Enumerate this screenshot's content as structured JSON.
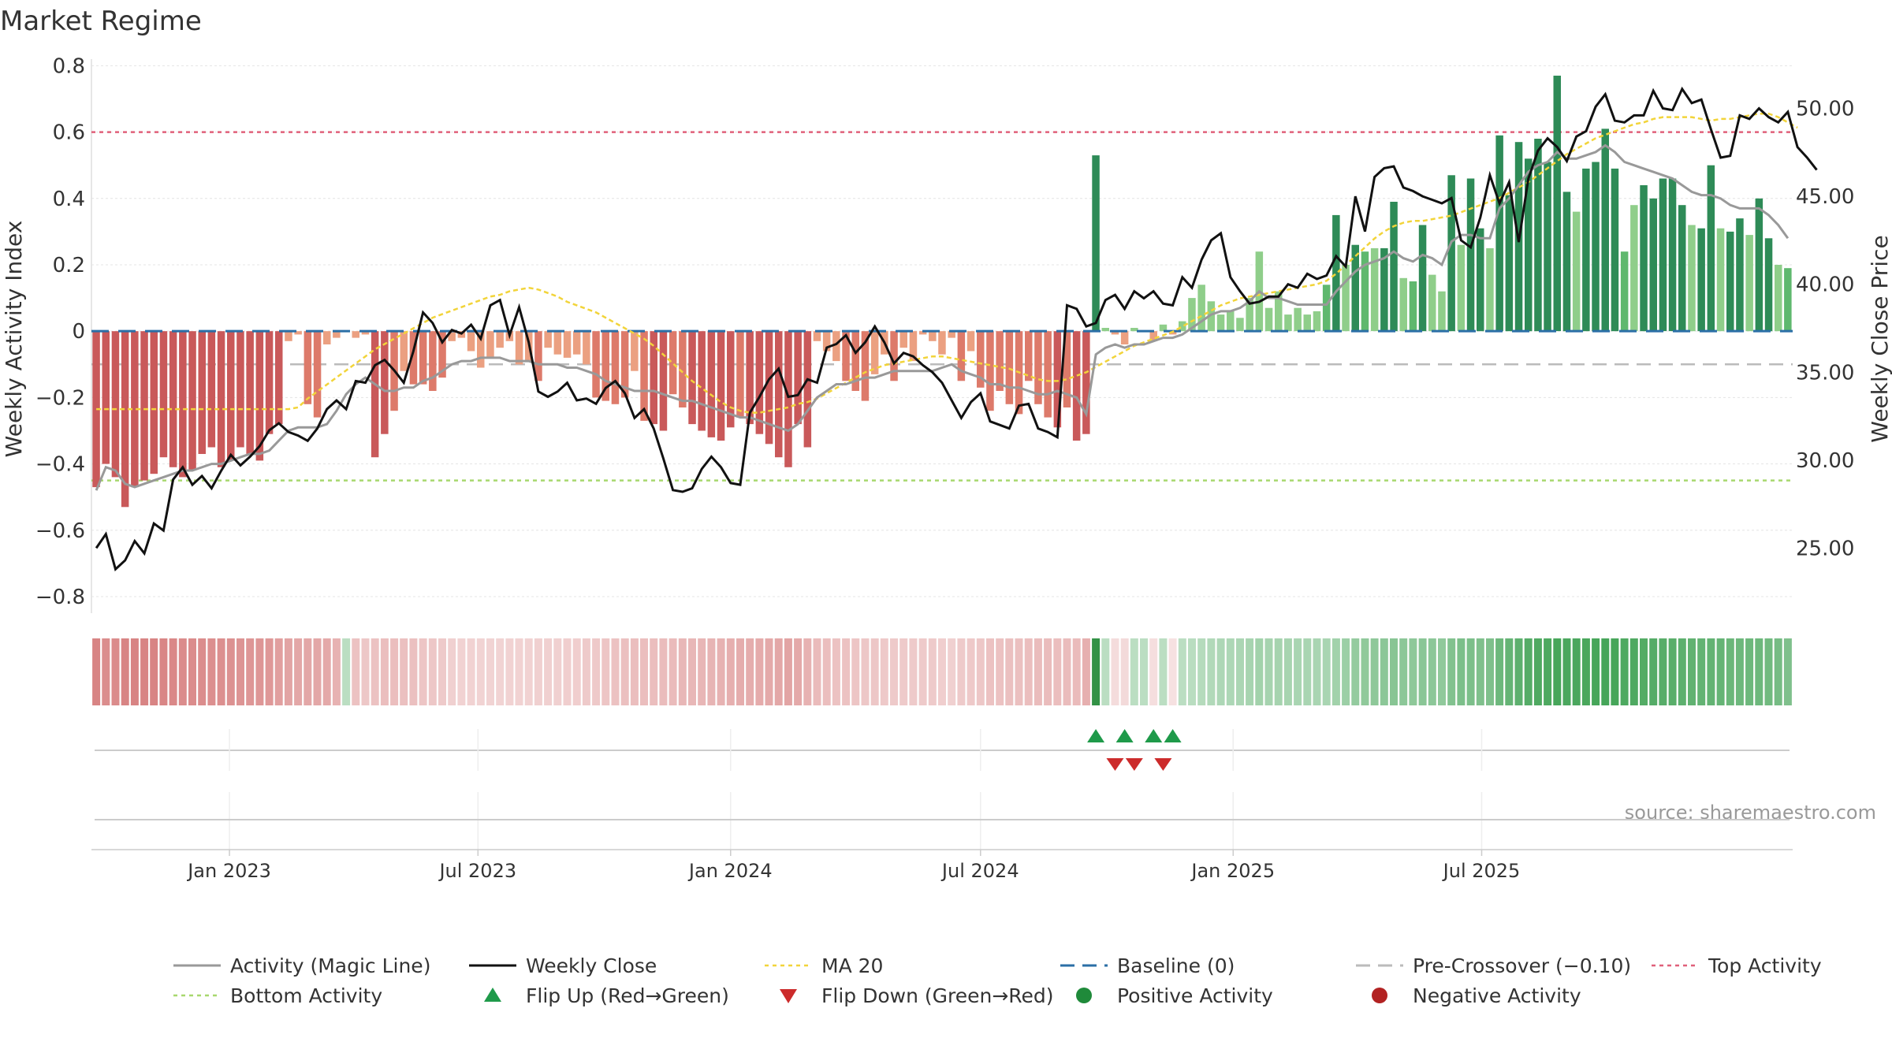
{
  "title": "Market Regime",
  "source": "source: sharemaestro.com",
  "colors": {
    "magic": "#999999",
    "close": "#111111",
    "ma20": "#f2d43a",
    "baseline": "#2b6fa6",
    "precross": "#bbbbbb",
    "top": "#e0607a",
    "bottom": "#a8d86e",
    "flip_up": "#1f9a4a",
    "flip_down": "#cc2b2b",
    "pos": "#1f8a3a",
    "neg": "#b22222",
    "grid": "#e4e4e4"
  },
  "chart_data": {
    "type": "bar",
    "left_axis": {
      "label": "Weekly Activity Index",
      "ylim": [
        -0.85,
        0.82
      ],
      "ticks": [
        "0.8",
        "0.6",
        "0.4",
        "0.2",
        "0",
        "−0.2",
        "−0.4",
        "−0.6",
        "−0.8"
      ]
    },
    "right_axis": {
      "label": "Weekly Close Price",
      "ylim": [
        21.3,
        52.8
      ],
      "ticks": [
        "50.00",
        "45.00",
        "40.00",
        "35.00",
        "30.00",
        "25.00"
      ]
    },
    "x_start": "2022-09-26",
    "x_step_days": 7,
    "x_ticks": [
      "Jan 2023",
      "Jul 2023",
      "Jan 2024",
      "Jul 2024",
      "Jan 2025",
      "Jul 2025"
    ],
    "top_activity": 0.6,
    "bottom_activity": -0.45,
    "pre_crossover": -0.1,
    "baseline": 0,
    "activity": [
      -0.47,
      -0.4,
      -0.44,
      -0.53,
      -0.47,
      -0.45,
      -0.43,
      -0.38,
      -0.41,
      -0.44,
      -0.42,
      -0.37,
      -0.35,
      -0.41,
      -0.39,
      -0.35,
      -0.37,
      -0.39,
      -0.31,
      -0.28,
      -0.03,
      -0.01,
      -0.22,
      -0.26,
      -0.04,
      -0.02,
      0,
      -0.02,
      -0.01,
      -0.38,
      -0.31,
      -0.24,
      -0.12,
      -0.16,
      -0.16,
      -0.18,
      -0.14,
      -0.03,
      -0.02,
      -0.06,
      -0.11,
      -0.08,
      -0.05,
      -0.03,
      -0.1,
      -0.09,
      -0.15,
      -0.05,
      -0.07,
      -0.08,
      -0.07,
      -0.1,
      -0.2,
      -0.21,
      -0.22,
      -0.2,
      -0.12,
      -0.27,
      -0.28,
      -0.3,
      -0.19,
      -0.23,
      -0.28,
      -0.3,
      -0.32,
      -0.33,
      -0.29,
      -0.26,
      -0.28,
      -0.31,
      -0.34,
      -0.38,
      -0.41,
      -0.28,
      -0.35,
      -0.03,
      -0.06,
      -0.09,
      -0.15,
      -0.18,
      -0.21,
      -0.13,
      -0.07,
      -0.15,
      -0.05,
      -0.09,
      -0.01,
      -0.03,
      -0.07,
      -0.02,
      -0.15,
      -0.06,
      -0.17,
      -0.24,
      -0.18,
      -0.22,
      -0.25,
      -0.15,
      -0.22,
      -0.26,
      -0.29,
      -0.23,
      -0.33,
      -0.31,
      0.53,
      0.01,
      -0.01,
      -0.04,
      0.01,
      0,
      -0.03,
      0.02,
      -0.01,
      0.03,
      0.1,
      0.14,
      0.09,
      0.05,
      0.06,
      0.04,
      0.1,
      0.24,
      0.07,
      0.12,
      0.05,
      0.07,
      0.05,
      0.06,
      0.14,
      0.35,
      0.2,
      0.26,
      0.24,
      0.25,
      0.25,
      0.39,
      0.16,
      0.15,
      0.32,
      0.17,
      0.12,
      0.47,
      0.26,
      0.46,
      0.31,
      0.25,
      0.59,
      0.41,
      0.57,
      0.52,
      0.58,
      0.51,
      0.77,
      0.42,
      0.36,
      0.49,
      0.51,
      0.61,
      0.49,
      0.24,
      0.38,
      0.44,
      0.4,
      0.46,
      0.46,
      0.38,
      0.32,
      0.31,
      0.5,
      0.31,
      0.3,
      0.34,
      0.29,
      0.4,
      0.28,
      0.2,
      0.19
    ],
    "magic": [
      -0.48,
      -0.41,
      -0.42,
      -0.46,
      -0.47,
      -0.46,
      -0.45,
      -0.44,
      -0.43,
      -0.42,
      -0.42,
      -0.41,
      -0.4,
      -0.4,
      -0.39,
      -0.38,
      -0.37,
      -0.37,
      -0.36,
      -0.33,
      -0.3,
      -0.29,
      -0.29,
      -0.29,
      -0.28,
      -0.24,
      -0.19,
      -0.16,
      -0.14,
      -0.16,
      -0.18,
      -0.18,
      -0.17,
      -0.17,
      -0.15,
      -0.14,
      -0.12,
      -0.1,
      -0.09,
      -0.09,
      -0.08,
      -0.08,
      -0.08,
      -0.09,
      -0.09,
      -0.09,
      -0.1,
      -0.1,
      -0.1,
      -0.11,
      -0.11,
      -0.12,
      -0.13,
      -0.15,
      -0.16,
      -0.17,
      -0.18,
      -0.18,
      -0.18,
      -0.19,
      -0.2,
      -0.21,
      -0.21,
      -0.22,
      -0.23,
      -0.24,
      -0.25,
      -0.26,
      -0.26,
      -0.27,
      -0.28,
      -0.29,
      -0.3,
      -0.28,
      -0.24,
      -0.2,
      -0.18,
      -0.16,
      -0.16,
      -0.15,
      -0.14,
      -0.14,
      -0.13,
      -0.12,
      -0.12,
      -0.12,
      -0.12,
      -0.12,
      -0.11,
      -0.1,
      -0.12,
      -0.13,
      -0.14,
      -0.16,
      -0.16,
      -0.17,
      -0.17,
      -0.18,
      -0.19,
      -0.19,
      -0.18,
      -0.19,
      -0.2,
      -0.25,
      -0.07,
      -0.05,
      -0.04,
      -0.05,
      -0.04,
      -0.04,
      -0.03,
      -0.02,
      -0.02,
      -0.01,
      0.01,
      0.03,
      0.05,
      0.06,
      0.06,
      0.07,
      0.09,
      0.12,
      0.1,
      0.1,
      0.09,
      0.08,
      0.08,
      0.08,
      0.08,
      0.12,
      0.15,
      0.18,
      0.2,
      0.21,
      0.22,
      0.24,
      0.22,
      0.21,
      0.23,
      0.22,
      0.2,
      0.27,
      0.29,
      0.29,
      0.28,
      0.28,
      0.37,
      0.4,
      0.44,
      0.48,
      0.5,
      0.51,
      0.54,
      0.52,
      0.52,
      0.53,
      0.54,
      0.56,
      0.54,
      0.51,
      0.5,
      0.49,
      0.48,
      0.47,
      0.46,
      0.44,
      0.42,
      0.41,
      0.41,
      0.4,
      0.38,
      0.37,
      0.37,
      0.37,
      0.35,
      0.32,
      0.28
    ],
    "close": [
      25.0,
      25.8,
      23.8,
      24.3,
      25.4,
      24.7,
      26.4,
      26.0,
      28.9,
      29.6,
      28.6,
      29.1,
      28.4,
      29.4,
      30.3,
      29.7,
      30.2,
      30.8,
      31.7,
      32.1,
      31.6,
      31.4,
      31.1,
      31.8,
      32.9,
      33.4,
      32.9,
      34.5,
      34.4,
      35.4,
      35.7,
      35.1,
      34.4,
      36.2,
      38.4,
      37.8,
      36.7,
      37.4,
      37.2,
      37.7,
      36.9,
      38.8,
      39.1,
      37.1,
      38.7,
      36.7,
      33.9,
      33.6,
      33.9,
      34.4,
      33.4,
      33.5,
      33.2,
      34.1,
      34.5,
      33.8,
      32.4,
      32.9,
      31.8,
      30.1,
      28.3,
      28.2,
      28.4,
      29.5,
      30.2,
      29.6,
      28.7,
      28.6,
      32.7,
      33.6,
      34.6,
      35.2,
      33.6,
      33.7,
      34.6,
      34.4,
      36.4,
      36.6,
      37.1,
      36.1,
      36.7,
      37.6,
      36.7,
      35.5,
      36.1,
      35.9,
      35.4,
      35.0,
      34.4,
      33.4,
      32.4,
      33.3,
      33.8,
      32.2,
      32.0,
      31.8,
      33.1,
      33.2,
      31.8,
      31.6,
      31.3,
      38.8,
      38.6,
      37.6,
      37.8,
      39.1,
      39.4,
      38.6,
      39.6,
      39.2,
      39.6,
      38.9,
      38.8,
      40.4,
      39.8,
      41.4,
      42.5,
      42.9,
      40.4,
      39.6,
      38.9,
      39.0,
      39.3,
      39.3,
      40.0,
      39.8,
      40.6,
      40.3,
      40.5,
      41.6,
      41.0,
      45.0,
      43.0,
      46.1,
      46.6,
      46.7,
      45.5,
      45.3,
      45.0,
      44.8,
      44.6,
      44.9,
      42.5,
      42.1,
      43.8,
      46.2,
      44.6,
      45.8,
      42.4,
      46.0,
      47.6,
      48.3,
      47.8,
      47.0,
      48.4,
      48.7,
      50.1,
      50.8,
      49.3,
      49.2,
      49.6,
      49.6,
      51.0,
      50.0,
      49.9,
      51.1,
      50.3,
      50.5,
      48.8,
      47.2,
      47.3,
      49.6,
      49.4,
      50.0,
      49.5,
      49.2,
      49.8,
      47.8,
      47.2,
      46.5
    ],
    "ma20": [
      32.9,
      32.9,
      32.9,
      32.9,
      32.9,
      32.9,
      32.9,
      32.9,
      32.9,
      32.9,
      32.9,
      32.9,
      32.9,
      32.9,
      32.9,
      32.9,
      32.9,
      32.9,
      32.9,
      32.9,
      32.9,
      33.0,
      33.5,
      33.9,
      34.3,
      34.7,
      35.1,
      35.5,
      35.9,
      36.3,
      36.6,
      36.9,
      37.2,
      37.5,
      37.8,
      38.1,
      38.3,
      38.5,
      38.7,
      38.9,
      39.1,
      39.3,
      39.4,
      39.6,
      39.7,
      39.8,
      39.7,
      39.5,
      39.3,
      39.0,
      38.8,
      38.6,
      38.4,
      38.1,
      37.8,
      37.5,
      37.2,
      36.9,
      36.5,
      36.0,
      35.5,
      35.0,
      34.5,
      34.1,
      33.7,
      33.3,
      33.0,
      32.8,
      32.7,
      32.7,
      32.8,
      32.9,
      33.0,
      33.2,
      33.3,
      33.5,
      33.8,
      34.1,
      34.4,
      34.7,
      35.0,
      35.2,
      35.4,
      35.5,
      35.6,
      35.7,
      35.8,
      35.9,
      35.9,
      35.8,
      35.7,
      35.6,
      35.5,
      35.4,
      35.3,
      35.2,
      35.0,
      34.8,
      34.6,
      34.5,
      34.5,
      34.6,
      34.8,
      35.0,
      35.3,
      35.6,
      35.9,
      36.2,
      36.5,
      36.7,
      36.9,
      37.1,
      37.3,
      37.6,
      37.9,
      38.2,
      38.5,
      38.8,
      39.0,
      39.2,
      39.3,
      39.4,
      39.5,
      39.6,
      39.7,
      39.8,
      39.9,
      40.0,
      40.2,
      40.6,
      41.1,
      41.6,
      42.1,
      42.6,
      43.0,
      43.3,
      43.5,
      43.6,
      43.6,
      43.7,
      43.8,
      43.9,
      44.1,
      44.3,
      44.5,
      44.7,
      44.9,
      45.2,
      45.5,
      45.8,
      46.2,
      46.6,
      47.0,
      47.4,
      47.7,
      48.0,
      48.3,
      48.5,
      48.7,
      48.9,
      49.1,
      49.2,
      49.4,
      49.5,
      49.5,
      49.5,
      49.5,
      49.4,
      49.3,
      49.4,
      49.4,
      49.5,
      49.6,
      49.7,
      49.7,
      49.5,
      49.2,
      48.9
    ],
    "flip_up": [
      "Jun 2024 wk4",
      "Jul 2024 wk2",
      "Jul 2024 wk5",
      "Aug 2024 wk2"
    ],
    "flip_down": [
      "Jul 2024 wk1",
      "Jul 2024 wk3",
      "Aug 2024 wk1"
    ],
    "legend": [
      {
        "key": "magic",
        "label": "Activity (Magic Line)",
        "style": "line"
      },
      {
        "key": "close",
        "label": "Weekly Close",
        "style": "line"
      },
      {
        "key": "ma20",
        "label": "MA 20",
        "style": "dotted"
      },
      {
        "key": "baseline",
        "label": "Baseline (0)",
        "style": "dashed"
      },
      {
        "key": "precross",
        "label": "Pre-Crossover (−0.10)",
        "style": "dashed"
      },
      {
        "key": "top",
        "label": "Top Activity",
        "style": "dotted"
      },
      {
        "key": "bottom",
        "label": "Bottom Activity",
        "style": "dotted"
      },
      {
        "key": "flip_up",
        "label": "Flip Up (Red→Green)",
        "style": "tri-up"
      },
      {
        "key": "flip_down",
        "label": "Flip Down (Green→Red)",
        "style": "tri-down"
      },
      {
        "key": "pos",
        "label": "Positive Activity",
        "style": "dot"
      },
      {
        "key": "neg",
        "label": "Negative Activity",
        "style": "dot"
      }
    ]
  }
}
